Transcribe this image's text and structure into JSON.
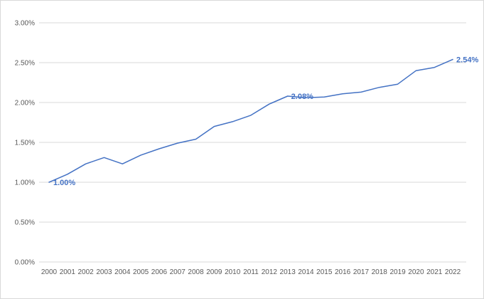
{
  "chart_data": {
    "type": "line",
    "title": "",
    "xlabel": "",
    "ylabel": "",
    "ylim": [
      0,
      0.03
    ],
    "y_ticks": [
      "0.00%",
      "0.50%",
      "1.00%",
      "1.50%",
      "2.00%",
      "2.50%",
      "3.00%"
    ],
    "y_tick_values": [
      0,
      0.005,
      0.01,
      0.015,
      0.02,
      0.025,
      0.03
    ],
    "grid": "horizontal",
    "legend": "none",
    "line_color": "#4472c4",
    "label_color": "#4472c4",
    "gridline_color": "#d9d9d9",
    "categories": [
      "2000",
      "2001",
      "2002",
      "2003",
      "2004",
      "2005",
      "2006",
      "2007",
      "2008",
      "2009",
      "2010",
      "2011",
      "2012",
      "2013",
      "2014",
      "2015",
      "2016",
      "2017",
      "2018",
      "2019",
      "2020",
      "2021",
      "2022"
    ],
    "series": [
      {
        "values": [
          0.01,
          0.011,
          0.0123,
          0.0131,
          0.0123,
          0.0134,
          0.0142,
          0.0149,
          0.0154,
          0.017,
          0.0176,
          0.0184,
          0.0198,
          0.0208,
          0.0206,
          0.0207,
          0.0211,
          0.0213,
          0.0219,
          0.0223,
          0.024,
          0.0244,
          0.0254
        ]
      }
    ],
    "data_labels": [
      {
        "category": "2000",
        "text": "1.00%"
      },
      {
        "category": "2013",
        "text": "2.08%"
      },
      {
        "category": "2022",
        "text": "2.54%"
      }
    ]
  }
}
